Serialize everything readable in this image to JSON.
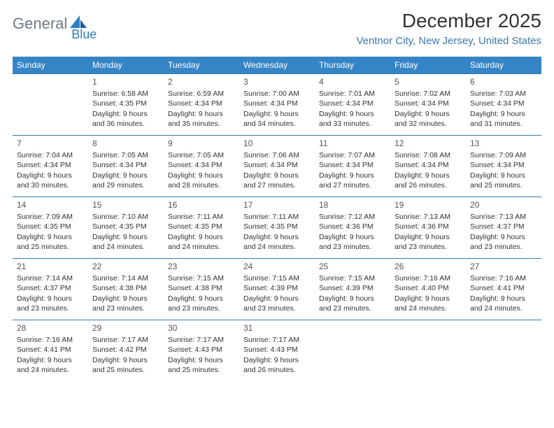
{
  "logo": {
    "text1": "General",
    "text2": "Blue"
  },
  "title": "December 2025",
  "subtitle": "Ventnor City, New Jersey, United States",
  "colors": {
    "header_bg": "#3585c6",
    "header_fg": "#ffffff",
    "rule": "#3c78aa",
    "logo_grey": "#6c7a85",
    "logo_blue": "#2f7ec0"
  },
  "day_headers": [
    "Sunday",
    "Monday",
    "Tuesday",
    "Wednesday",
    "Thursday",
    "Friday",
    "Saturday"
  ],
  "weeks": [
    [
      null,
      {
        "n": "1",
        "sr": "6:58 AM",
        "ss": "4:35 PM",
        "dl": "9 hours and 36 minutes."
      },
      {
        "n": "2",
        "sr": "6:59 AM",
        "ss": "4:34 PM",
        "dl": "9 hours and 35 minutes."
      },
      {
        "n": "3",
        "sr": "7:00 AM",
        "ss": "4:34 PM",
        "dl": "9 hours and 34 minutes."
      },
      {
        "n": "4",
        "sr": "7:01 AM",
        "ss": "4:34 PM",
        "dl": "9 hours and 33 minutes."
      },
      {
        "n": "5",
        "sr": "7:02 AM",
        "ss": "4:34 PM",
        "dl": "9 hours and 32 minutes."
      },
      {
        "n": "6",
        "sr": "7:03 AM",
        "ss": "4:34 PM",
        "dl": "9 hours and 31 minutes."
      }
    ],
    [
      {
        "n": "7",
        "sr": "7:04 AM",
        "ss": "4:34 PM",
        "dl": "9 hours and 30 minutes."
      },
      {
        "n": "8",
        "sr": "7:05 AM",
        "ss": "4:34 PM",
        "dl": "9 hours and 29 minutes."
      },
      {
        "n": "9",
        "sr": "7:05 AM",
        "ss": "4:34 PM",
        "dl": "9 hours and 28 minutes."
      },
      {
        "n": "10",
        "sr": "7:06 AM",
        "ss": "4:34 PM",
        "dl": "9 hours and 27 minutes."
      },
      {
        "n": "11",
        "sr": "7:07 AM",
        "ss": "4:34 PM",
        "dl": "9 hours and 27 minutes."
      },
      {
        "n": "12",
        "sr": "7:08 AM",
        "ss": "4:34 PM",
        "dl": "9 hours and 26 minutes."
      },
      {
        "n": "13",
        "sr": "7:09 AM",
        "ss": "4:34 PM",
        "dl": "9 hours and 25 minutes."
      }
    ],
    [
      {
        "n": "14",
        "sr": "7:09 AM",
        "ss": "4:35 PM",
        "dl": "9 hours and 25 minutes."
      },
      {
        "n": "15",
        "sr": "7:10 AM",
        "ss": "4:35 PM",
        "dl": "9 hours and 24 minutes."
      },
      {
        "n": "16",
        "sr": "7:11 AM",
        "ss": "4:35 PM",
        "dl": "9 hours and 24 minutes."
      },
      {
        "n": "17",
        "sr": "7:11 AM",
        "ss": "4:35 PM",
        "dl": "9 hours and 24 minutes."
      },
      {
        "n": "18",
        "sr": "7:12 AM",
        "ss": "4:36 PM",
        "dl": "9 hours and 23 minutes."
      },
      {
        "n": "19",
        "sr": "7:13 AM",
        "ss": "4:36 PM",
        "dl": "9 hours and 23 minutes."
      },
      {
        "n": "20",
        "sr": "7:13 AM",
        "ss": "4:37 PM",
        "dl": "9 hours and 23 minutes."
      }
    ],
    [
      {
        "n": "21",
        "sr": "7:14 AM",
        "ss": "4:37 PM",
        "dl": "9 hours and 23 minutes."
      },
      {
        "n": "22",
        "sr": "7:14 AM",
        "ss": "4:38 PM",
        "dl": "9 hours and 23 minutes."
      },
      {
        "n": "23",
        "sr": "7:15 AM",
        "ss": "4:38 PM",
        "dl": "9 hours and 23 minutes."
      },
      {
        "n": "24",
        "sr": "7:15 AM",
        "ss": "4:39 PM",
        "dl": "9 hours and 23 minutes."
      },
      {
        "n": "25",
        "sr": "7:15 AM",
        "ss": "4:39 PM",
        "dl": "9 hours and 23 minutes."
      },
      {
        "n": "26",
        "sr": "7:16 AM",
        "ss": "4:40 PM",
        "dl": "9 hours and 24 minutes."
      },
      {
        "n": "27",
        "sr": "7:16 AM",
        "ss": "4:41 PM",
        "dl": "9 hours and 24 minutes."
      }
    ],
    [
      {
        "n": "28",
        "sr": "7:16 AM",
        "ss": "4:41 PM",
        "dl": "9 hours and 24 minutes."
      },
      {
        "n": "29",
        "sr": "7:17 AM",
        "ss": "4:42 PM",
        "dl": "9 hours and 25 minutes."
      },
      {
        "n": "30",
        "sr": "7:17 AM",
        "ss": "4:43 PM",
        "dl": "9 hours and 25 minutes."
      },
      {
        "n": "31",
        "sr": "7:17 AM",
        "ss": "4:43 PM",
        "dl": "9 hours and 26 minutes."
      },
      null,
      null,
      null
    ]
  ],
  "labels": {
    "sunrise": "Sunrise:",
    "sunset": "Sunset:",
    "daylight": "Daylight:"
  }
}
